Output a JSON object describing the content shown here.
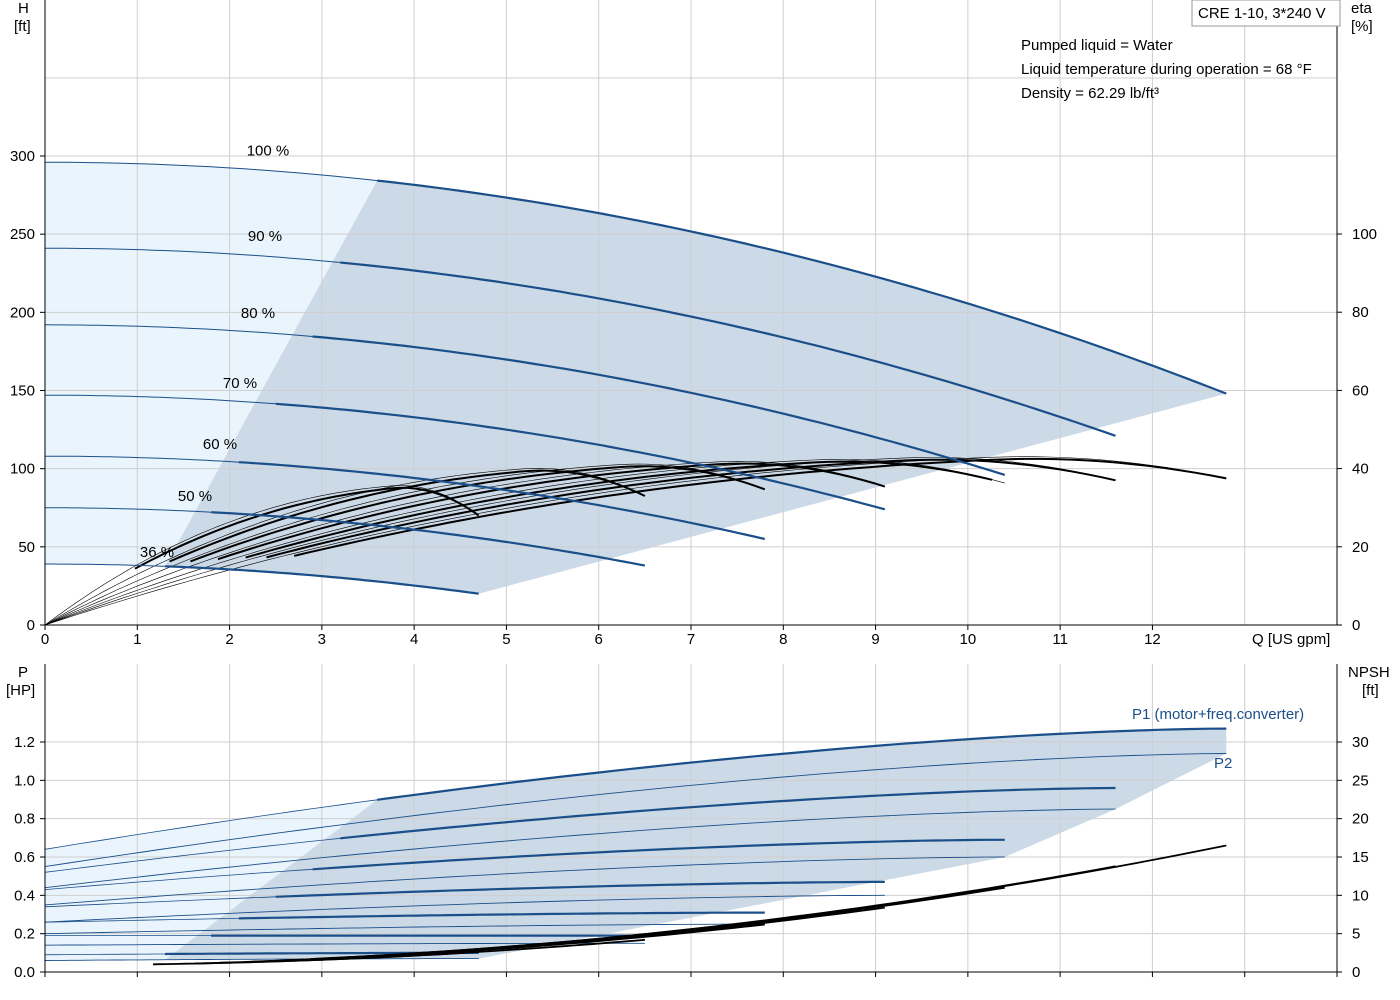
{
  "chart_data": [
    {
      "type": "line",
      "title": "",
      "product_label": "CRE 1-10, 3*240 V",
      "info_lines": [
        "Pumped liquid = Water",
        "Liquid temperature during operation = 68 °F",
        "Density = 62.29 lb/ft³"
      ],
      "xlabel": "Q [US gpm]",
      "ylabel_left": [
        "H",
        "[ft]"
      ],
      "ylabel_right": [
        "eta",
        "[%]"
      ],
      "xlim": [
        0,
        14
      ],
      "ylim_left": [
        0,
        300
      ],
      "ylim_right": [
        0,
        120
      ],
      "xticks": [
        0,
        1,
        2,
        3,
        4,
        5,
        6,
        7,
        8,
        9,
        10,
        11,
        12
      ],
      "yticks_left": [
        0,
        50,
        100,
        150,
        200,
        250,
        300
      ],
      "yticks_right": [
        0,
        20,
        40,
        60,
        80,
        100
      ],
      "grid": true,
      "colors": {
        "head_curve": "#1b4f8a",
        "eff_curve": "#000000",
        "area_light": "#eaf4fc",
        "area_dark": "#ccd9e6"
      },
      "head_curves": [
        {
          "label": "100 %",
          "shut_off": 296,
          "q_max": 12.8,
          "h_end": 148,
          "q_start": 3.6
        },
        {
          "label": "90 %",
          "shut_off": 241,
          "q_max": 11.6,
          "h_end": 121,
          "q_start": 3.2
        },
        {
          "label": "80 %",
          "shut_off": 192,
          "q_max": 10.4,
          "h_end": 96,
          "q_start": 2.9
        },
        {
          "label": "70 %",
          "shut_off": 147,
          "q_max": 9.1,
          "h_end": 74,
          "q_start": 2.5
        },
        {
          "label": "60 %",
          "shut_off": 108,
          "q_max": 7.8,
          "h_end": 55,
          "q_start": 2.1
        },
        {
          "label": "50 %",
          "shut_off": 75,
          "q_max": 6.5,
          "h_end": 38,
          "q_start": 1.8
        },
        {
          "label": "36 %",
          "shut_off": 39,
          "q_max": 4.7,
          "h_end": 20,
          "q_start": 1.3
        }
      ],
      "efficiency_curves": [
        {
          "q_max": 12.8,
          "eta_end": 37.5,
          "eta_peak": 43.5
        },
        {
          "q_max": 11.6,
          "eta_end": 37.0,
          "eta_peak": 43.3
        },
        {
          "q_max": 10.4,
          "eta_end": 36.3,
          "eta_peak": 42.8
        },
        {
          "q_max": 9.1,
          "eta_end": 35.4,
          "eta_peak": 42.3
        },
        {
          "q_max": 7.8,
          "eta_end": 34.7,
          "eta_peak": 41.6
        },
        {
          "q_max": 6.5,
          "eta_end": 33.0,
          "eta_peak": 40.5
        },
        {
          "q_max": 4.7,
          "eta_end": 28.0,
          "eta_peak": 36.0
        }
      ]
    },
    {
      "type": "line",
      "title": "",
      "xlabel": "",
      "ylabel_left": [
        "P",
        "[HP]"
      ],
      "ylabel_right": [
        "NPSH",
        "[ft]"
      ],
      "xlim": [
        0,
        14
      ],
      "ylim_left": [
        0,
        1.3
      ],
      "ylim_right": [
        0,
        35
      ],
      "yticks_left": [
        0.0,
        0.2,
        0.4,
        0.6,
        0.8,
        1.0,
        1.2
      ],
      "yticks_right": [
        0,
        5,
        10,
        15,
        20,
        25,
        30
      ],
      "grid": true,
      "series_labels": {
        "p1": "P1 (motor+freq.converter)",
        "p2": "P2"
      },
      "power_curves": [
        {
          "q_max": 12.8,
          "p1_start": 0.64,
          "p1_end": 1.27,
          "p2_start": 0.55,
          "p2_end": 1.14,
          "q_start": 3.6
        },
        {
          "q_max": 11.6,
          "p1_start": 0.52,
          "p1_end": 0.96,
          "p2_start": 0.44,
          "p2_end": 0.85,
          "q_start": 3.2
        },
        {
          "q_max": 10.4,
          "p1_start": 0.43,
          "p1_end": 0.69,
          "p2_start": 0.35,
          "p2_end": 0.6,
          "q_start": 2.9
        },
        {
          "q_max": 9.1,
          "p1_start": 0.34,
          "p1_end": 0.47,
          "p2_start": 0.26,
          "p2_end": 0.4,
          "q_start": 2.5
        },
        {
          "q_max": 7.8,
          "p1_start": 0.26,
          "p1_end": 0.31,
          "p2_start": 0.2,
          "p2_end": 0.25,
          "q_start": 2.1
        },
        {
          "q_max": 6.5,
          "p1_start": 0.19,
          "p1_end": 0.19,
          "p2_start": 0.14,
          "p2_end": 0.15,
          "q_start": 1.8
        },
        {
          "q_max": 4.7,
          "p1_start": 0.09,
          "p1_end": 0.1,
          "p2_start": 0.06,
          "p2_end": 0.07,
          "q_start": 1.3
        }
      ],
      "npsh_curves": [
        {
          "q_max": 12.8,
          "npsh_end": 16.5
        },
        {
          "q_max": 11.6,
          "npsh_end": 13.8
        },
        {
          "q_max": 10.4,
          "npsh_end": 11.0
        },
        {
          "q_max": 9.1,
          "npsh_end": 8.4
        },
        {
          "q_max": 7.8,
          "npsh_end": 6.2
        },
        {
          "q_max": 6.5,
          "npsh_end": 4.2
        },
        {
          "q_max": 4.7,
          "npsh_end": 2.6
        }
      ]
    }
  ]
}
